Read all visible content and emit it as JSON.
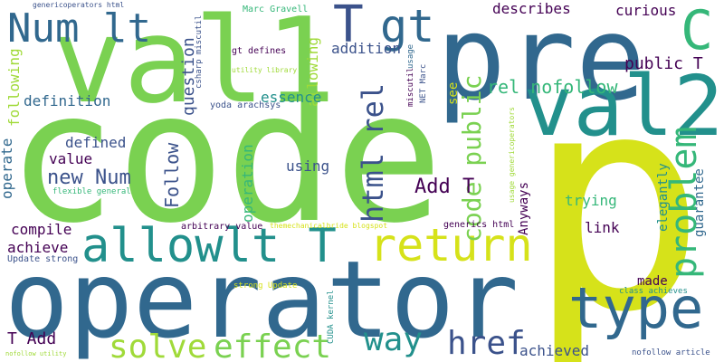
{
  "palette": {
    "background": "#ffffff",
    "green": "#7ad151",
    "yellow": "#d6e21a",
    "teal": "#22908c",
    "blue": "#31688e",
    "navy": "#3b528b",
    "purple": "#440154",
    "aqua": "#35b779",
    "lime": "#a0da39"
  },
  "words": {
    "code": "code",
    "p": "p",
    "operator": "operator",
    "pre": "pre",
    "val1": "val1",
    "val2": "val2",
    "c": "C",
    "t1": "T",
    "gt": "gt",
    "num_lt": "Num lt",
    "allowlt_t": "allowlt T",
    "return": "return",
    "type": "type",
    "solve": "solve",
    "effect": "effect",
    "way": "way",
    "href": "href",
    "problem": "problem",
    "html_rel": "html rel",
    "rel_nofollow": "rel nofollow",
    "public_t": "public T",
    "code_public": "code public",
    "add_t": "Add T",
    "t_add": "T Add",
    "new_num": "new Num",
    "definition": "definition",
    "describes": "describes",
    "curious": "curious",
    "addition": "addition",
    "allowing": "allowing",
    "question": "question",
    "essence": "essence",
    "following": "following",
    "defined": "defined",
    "value": "value",
    "operate": "operate",
    "follow": "Follow",
    "operation": "operation",
    "using": "using",
    "see": "see",
    "trying": "trying",
    "anyways": "Anyways",
    "link": "link",
    "elegantly": "elegantly",
    "guarantee": "guarantee",
    "compile": "compile",
    "achieve": "achieve",
    "made": "made",
    "achieved": "achieved",
    "gt_defines": "gt defines",
    "marc_gravell": "Marc Gravell",
    "csharp_miscutil": "csharp miscutil",
    "miscutil": "miscutil",
    "usage": "usage",
    "net_marc": "NET Marc",
    "utility_library": "utility library",
    "genericoperators_html": "genericoperators html",
    "yoda_arachsys": "yoda arachsys",
    "flexible_general": "flexible general",
    "arbitrary_value": "arbitrary value",
    "themechanicalbride_blogspot": "themechanicalbride blogspot",
    "generics_html": "generics html",
    "usage_genericoperators": "usage genericoperators",
    "update_strong": "Update strong",
    "strong_update": "strong Update",
    "cuda_kernel": "CUDA kernel",
    "class_achieves": "class achieves",
    "nofollow_article": "nofollow article",
    "nofollow_utility": "nofollow utility"
  }
}
